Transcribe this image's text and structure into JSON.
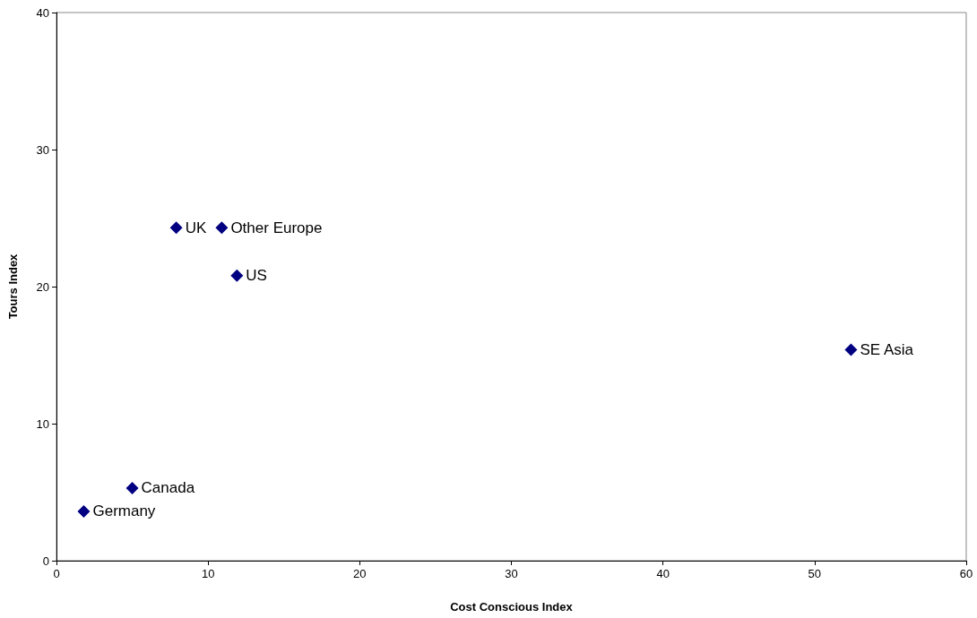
{
  "chart_data": {
    "type": "scatter",
    "xlabel": "Cost Conscious Index",
    "ylabel": "Tours Index",
    "x": [
      7.9,
      10.9,
      11.9,
      52.4,
      5.0,
      1.8
    ],
    "values": [
      24.3,
      24.3,
      20.8,
      15.4,
      5.3,
      3.6
    ],
    "color": "#000080",
    "marker": "diamond",
    "xlim": [
      0,
      60
    ],
    "xticks": [
      0,
      10,
      20,
      30,
      40,
      50,
      60
    ],
    "ylim": [
      0,
      40
    ],
    "yticks": [
      0,
      10,
      20,
      30,
      40
    ],
    "grid": false,
    "annotations": [
      {
        "text": "UK",
        "x": 7.9,
        "y": 24.3
      },
      {
        "text": "Other Europe",
        "x": 10.9,
        "y": 24.3
      },
      {
        "text": "US",
        "x": 11.9,
        "y": 20.8
      },
      {
        "text": "SE Asia",
        "x": 52.4,
        "y": 15.4
      },
      {
        "text": "Canada",
        "x": 5.0,
        "y": 5.3
      },
      {
        "text": "Germany",
        "x": 1.8,
        "y": 3.6
      }
    ]
  }
}
